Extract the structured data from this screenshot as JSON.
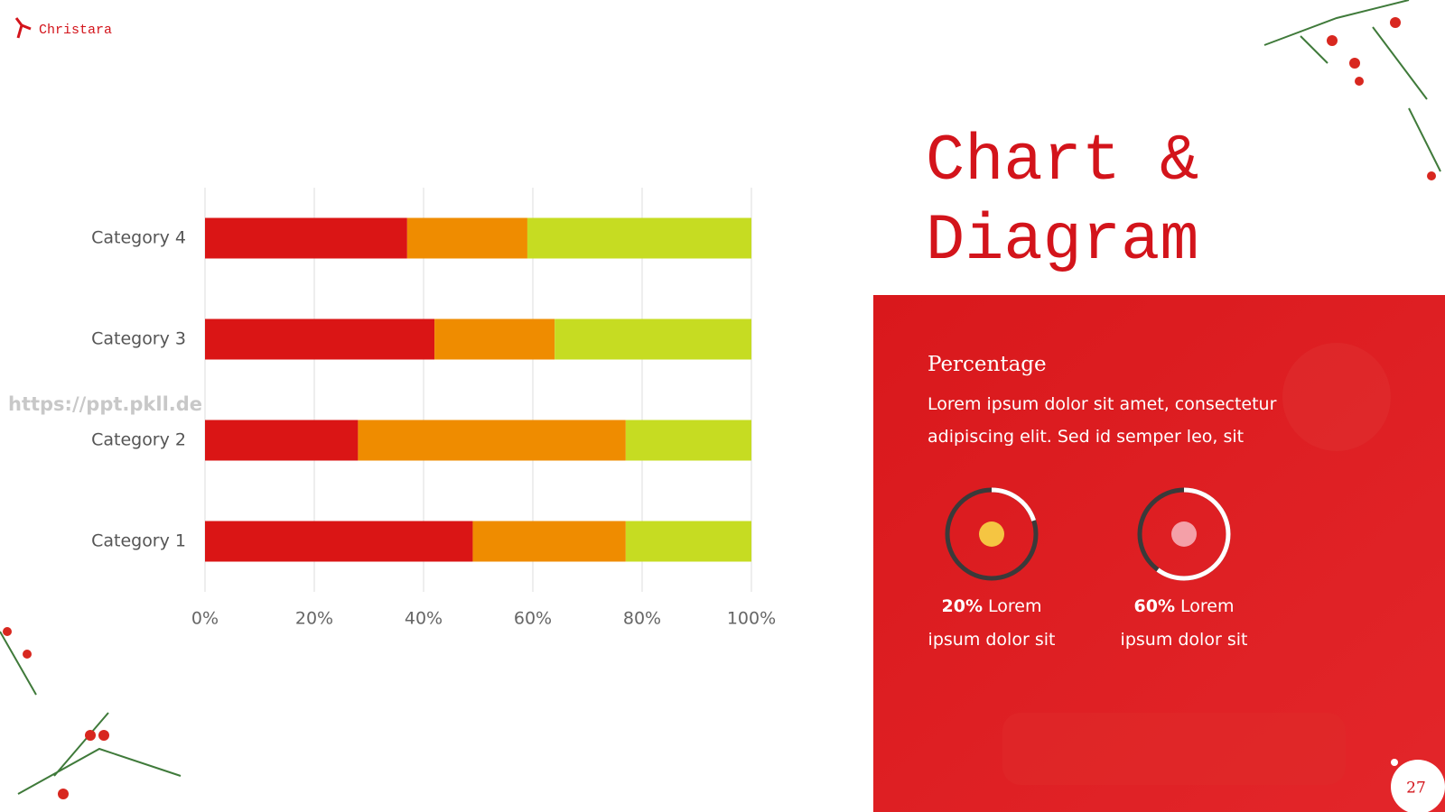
{
  "brand": "Christara",
  "watermark": "https://ppt.pkll.de",
  "title_lines": [
    "Chart &",
    "Diagram"
  ],
  "panel": {
    "heading": "Percentage",
    "text": "Lorem ipsum dolor sit amet, consectetur adipiscing elit. Sed id semper leo, sit",
    "stats": [
      {
        "value": 20,
        "label": "20%",
        "caption": "Lorem ipsum dolor sit"
      },
      {
        "value": 60,
        "label": "60%",
        "caption": "Lorem ipsum dolor sit"
      }
    ]
  },
  "page_number": "27",
  "chart_data": {
    "type": "stacked-bar-horizontal",
    "categories": [
      "Category 1",
      "Category 2",
      "Category 3",
      "Category 4"
    ],
    "series": [
      {
        "color": "#da1515",
        "values": [
          49,
          28,
          42,
          37
        ]
      },
      {
        "color": "#ef8c00",
        "values": [
          28,
          49,
          22,
          22
        ]
      },
      {
        "color": "#c6dc22",
        "values": [
          23,
          23,
          36,
          41
        ]
      }
    ],
    "xlim": [
      0,
      100
    ],
    "xticks": [
      {
        "value": 0,
        "label": "0%"
      },
      {
        "value": 20,
        "label": "20%"
      },
      {
        "value": 40,
        "label": "40%"
      },
      {
        "value": 60,
        "label": "60%"
      },
      {
        "value": 80,
        "label": "80%"
      },
      {
        "value": 100,
        "label": "100%"
      }
    ],
    "grid": true
  }
}
